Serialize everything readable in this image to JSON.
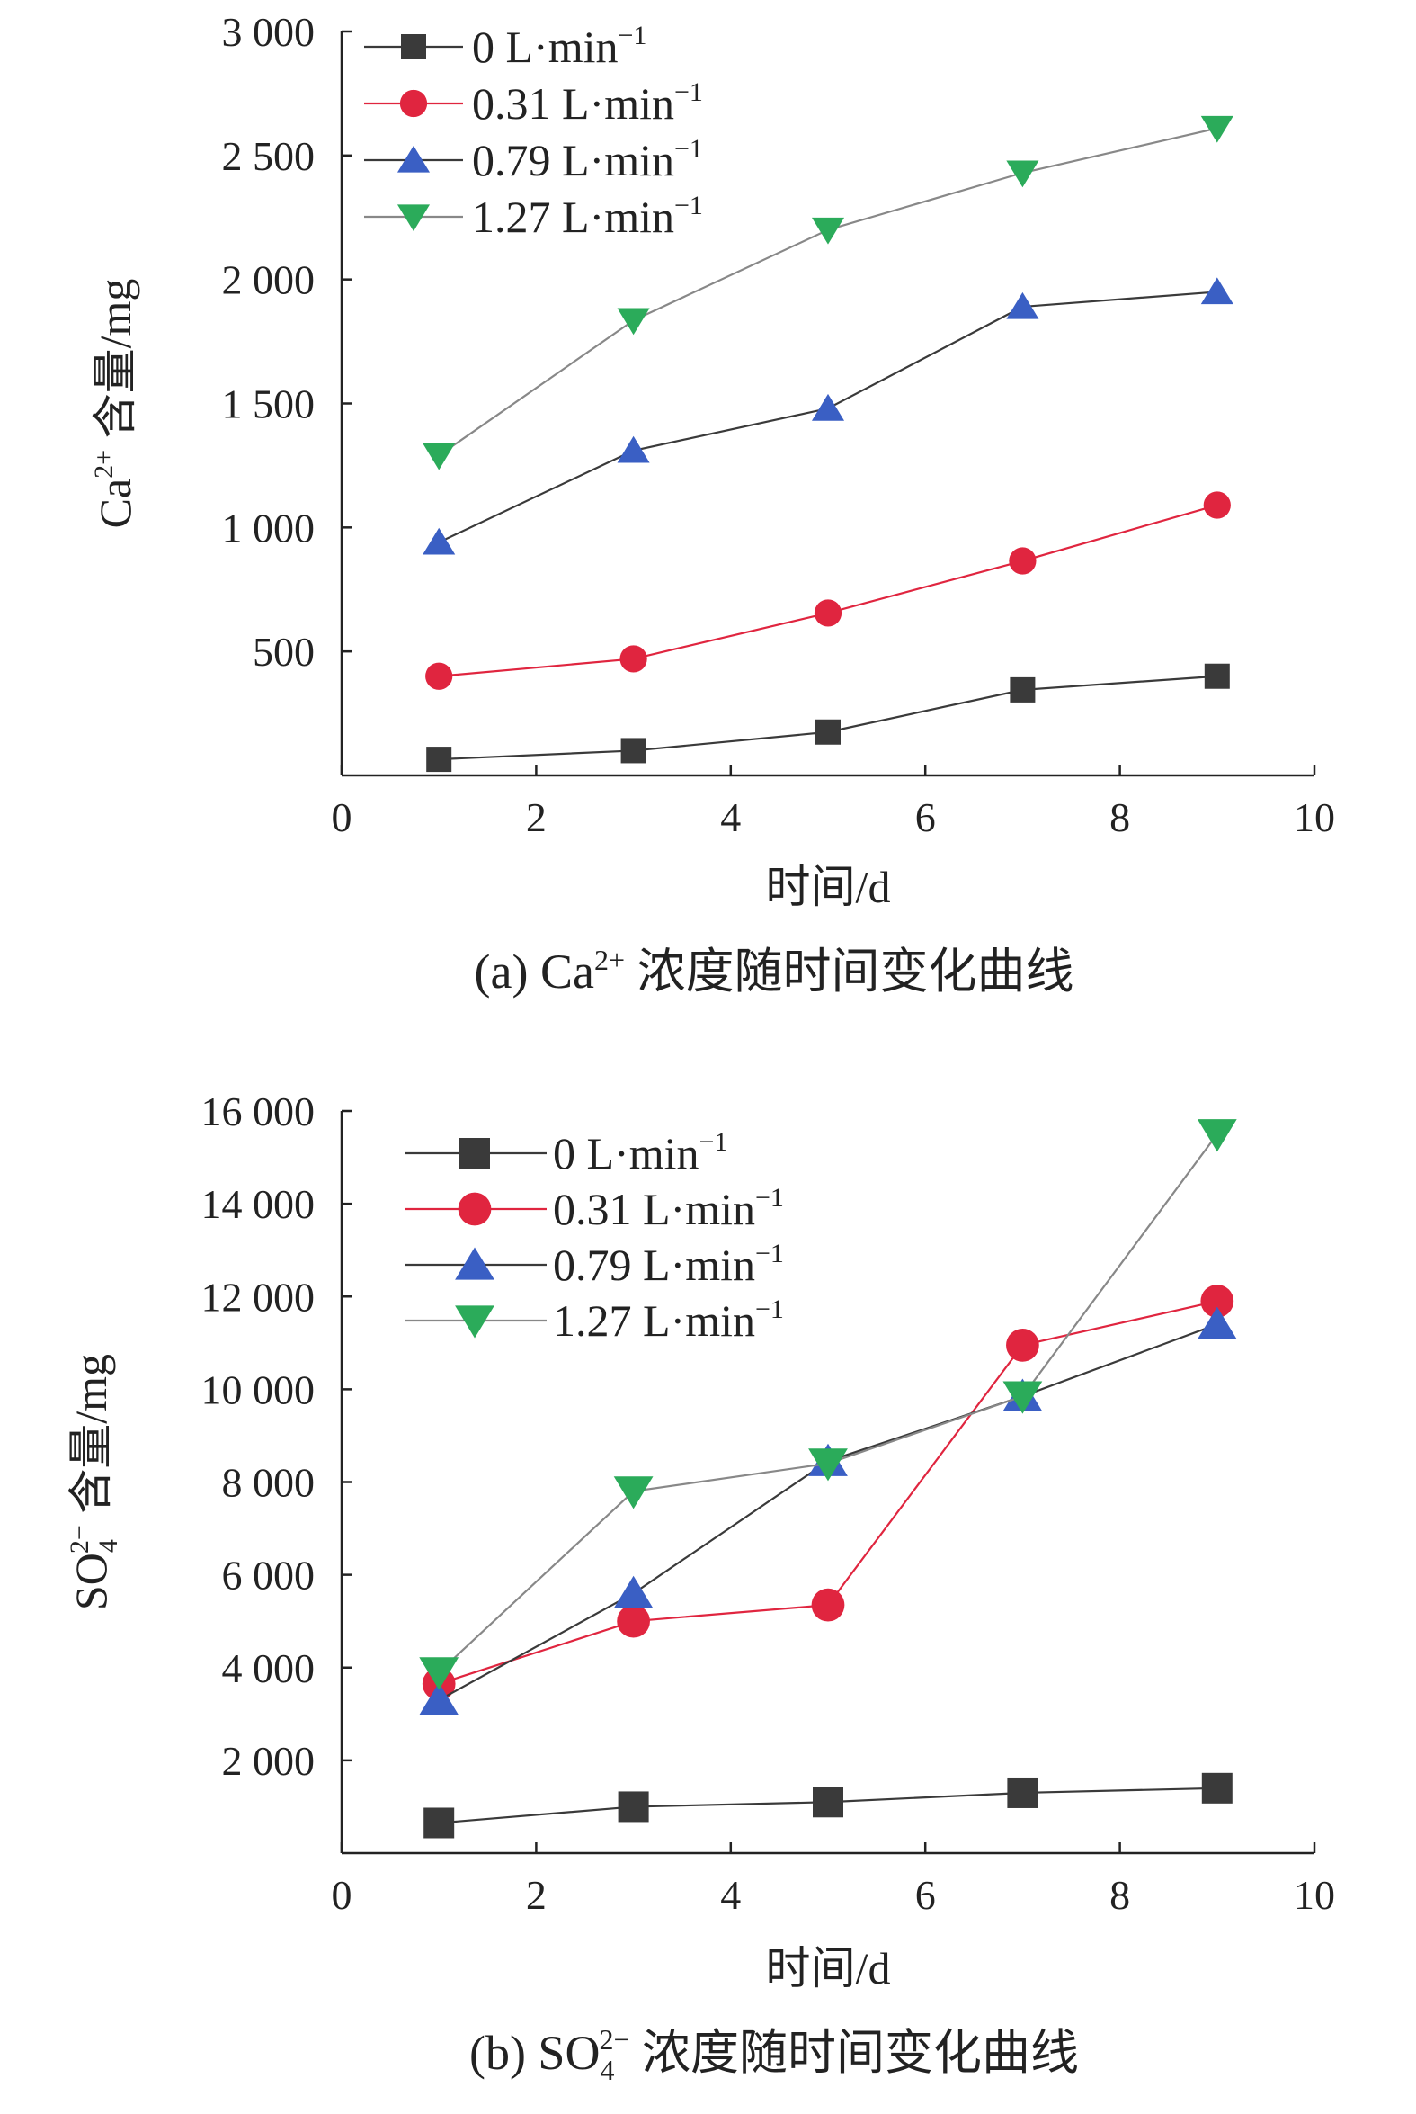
{
  "chart_data": [
    {
      "type": "line",
      "caption": {
        "prefix": "(a) Ca",
        "sup": "2+",
        "suffix": " 浓度随时间变化曲线"
      },
      "xlabel": "时间/d",
      "ylabel": {
        "base": "Ca",
        "sup": "2+",
        "rest": " 含量/mg"
      },
      "xlim": [
        0,
        10
      ],
      "ylim": [
        0,
        3000
      ],
      "xticks": [
        0,
        2,
        4,
        6,
        8,
        10
      ],
      "xtick_labels": [
        "0",
        "2",
        "4",
        "6",
        "8",
        "10"
      ],
      "yticks": [
        500,
        1000,
        1500,
        2000,
        2500,
        3000
      ],
      "ytick_labels": [
        "500",
        "1 000",
        "1 500",
        "2 000",
        "2 500",
        "3 000"
      ],
      "grid": false,
      "legend_position": "top-left",
      "x": [
        1,
        3,
        5,
        7,
        9
      ],
      "series": [
        {
          "name": "0 L·min",
          "unit_sup": "−1",
          "marker": "square",
          "color": "#3a3a3a",
          "line_color": "#3a3a3a",
          "values": [
            65,
            100,
            175,
            345,
            400
          ]
        },
        {
          "name": "0.31 L·min",
          "unit_sup": "−1",
          "marker": "circle",
          "color": "#e0253f",
          "line_color": "#e0253f",
          "values": [
            400,
            470,
            655,
            865,
            1090
          ]
        },
        {
          "name": "0.79 L·min",
          "unit_sup": "−1",
          "marker": "triangle-up",
          "color": "#3a5fc4",
          "line_color": "#3a3a3a",
          "values": [
            940,
            1310,
            1480,
            1890,
            1950
          ]
        },
        {
          "name": "1.27 L·min",
          "unit_sup": "−1",
          "marker": "triangle-down",
          "color": "#2bab5a",
          "line_color": "#888888",
          "values": [
            1290,
            1835,
            2200,
            2430,
            2610
          ]
        }
      ]
    },
    {
      "type": "line",
      "caption": {
        "prefix": "(b) SO",
        "sub": "4",
        "sup": "2−",
        "suffix": " 浓度随时间变化曲线"
      },
      "xlabel": "时间/d",
      "ylabel": {
        "base": "SO",
        "sub": "4",
        "sup": "2−",
        "rest": " 含量/mg"
      },
      "xlim": [
        0,
        10
      ],
      "ylim": [
        0,
        16000
      ],
      "xticks": [
        0,
        2,
        4,
        6,
        8,
        10
      ],
      "xtick_labels": [
        "0",
        "2",
        "4",
        "6",
        "8",
        "10"
      ],
      "yticks": [
        2000,
        4000,
        6000,
        8000,
        10000,
        12000,
        14000,
        16000
      ],
      "ytick_labels": [
        "2 000",
        "4 000",
        "6 000",
        "8 000",
        "10 000",
        "12 000",
        "14 000",
        "16 000"
      ],
      "grid": false,
      "legend_position": "top-left",
      "x": [
        1,
        3,
        5,
        7,
        9
      ],
      "series": [
        {
          "name": "0 L·min",
          "unit_sup": "−1",
          "marker": "square",
          "color": "#3a3a3a",
          "line_color": "#3a3a3a",
          "values": [
            650,
            1000,
            1100,
            1300,
            1400
          ]
        },
        {
          "name": "0.31 L·min",
          "unit_sup": "−1",
          "marker": "circle",
          "color": "#e0253f",
          "line_color": "#e0253f",
          "values": [
            3650,
            5000,
            5350,
            10950,
            11900
          ]
        },
        {
          "name": "0.79 L·min",
          "unit_sup": "−1",
          "marker": "triangle-up",
          "color": "#3a5fc4",
          "line_color": "#3a3a3a",
          "values": [
            3300,
            5600,
            8450,
            9850,
            11400
          ]
        },
        {
          "name": "1.27 L·min",
          "unit_sup": "−1",
          "marker": "triangle-down",
          "color": "#2bab5a",
          "line_color": "#888888",
          "values": [
            3900,
            7800,
            8400,
            9850,
            15500
          ]
        }
      ]
    }
  ]
}
